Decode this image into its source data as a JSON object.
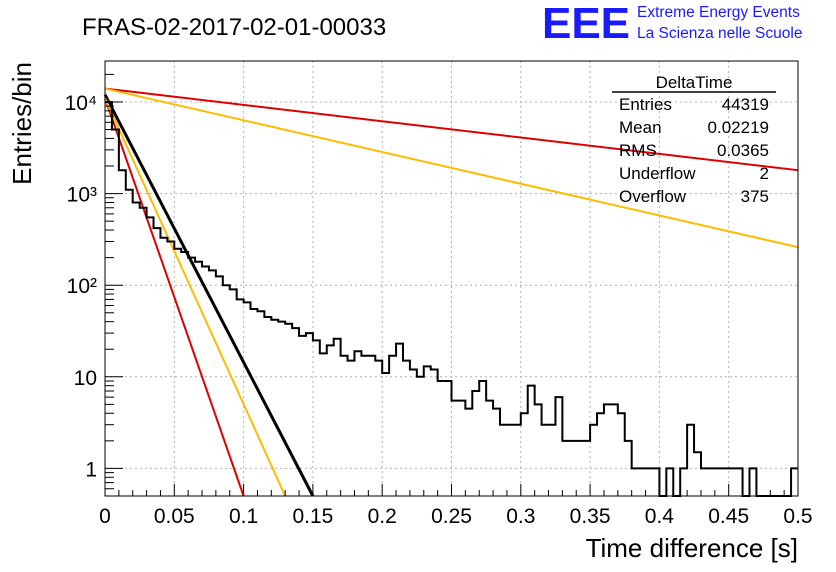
{
  "header": {
    "title": "FRAS-02-2017-02-01-00033",
    "logo_text": "EEE",
    "logo_line1": "Extreme Energy Events",
    "logo_line2": "La Scienza nelle Scuole"
  },
  "stats_box": {
    "title": "DeltaTime",
    "rows": [
      {
        "label": "Entries",
        "value": "44319"
      },
      {
        "label": "Mean",
        "value": "0.02219"
      },
      {
        "label": "RMS",
        "value": "0.0365"
      },
      {
        "label": "Underflow",
        "value": "2"
      },
      {
        "label": "Overflow",
        "value": "375"
      }
    ]
  },
  "colors": {
    "histogram": "#000000",
    "fit_dark": "#000000",
    "fit_red": "#dd0000",
    "fit_orange": "#ffbb00",
    "logo_blue": "#1a1aff"
  },
  "chart_data": {
    "type": "line",
    "title": "FRAS-02-2017-02-01-00033",
    "xlabel": "Time difference [s]",
    "ylabel": "Entries/bin",
    "xlim": [
      0,
      0.5
    ],
    "ylim": [
      0.5,
      28000
    ],
    "y_scale": "log",
    "grid": true,
    "x_ticks": [
      "0",
      "0.05",
      "0.1",
      "0.15",
      "0.2",
      "0.25",
      "0.3",
      "0.35",
      "0.4",
      "0.45",
      "0.5"
    ],
    "y_ticks": [
      {
        "value": 1,
        "label": "1"
      },
      {
        "value": 10,
        "label": "10"
      },
      {
        "value": 100,
        "label": "10²"
      },
      {
        "value": 1000,
        "label": "10³"
      },
      {
        "value": 10000,
        "label": "10⁴"
      }
    ],
    "histogram": {
      "name": "DeltaTime",
      "bin_width": 0.005,
      "values": [
        10000,
        5000,
        1800,
        1100,
        800,
        700,
        550,
        420,
        330,
        300,
        250,
        230,
        200,
        180,
        160,
        145,
        125,
        100,
        90,
        70,
        65,
        55,
        52,
        45,
        42,
        40,
        38,
        34,
        28,
        30,
        25,
        18,
        22,
        26,
        17,
        15,
        19,
        17,
        17,
        15,
        11,
        17,
        23,
        15,
        12,
        10,
        13,
        12,
        9,
        9,
        5.5,
        5.5,
        4.5,
        7,
        9,
        5.5,
        4.5,
        3,
        3,
        3,
        4,
        8,
        5,
        3,
        3,
        6,
        2,
        2,
        2,
        2,
        3,
        4,
        5,
        5,
        4,
        2,
        1,
        1,
        1,
        1,
        0.4,
        1,
        0.5,
        1,
        3,
        1.5,
        1,
        1,
        1,
        1,
        1,
        1,
        0.4,
        1,
        0.4,
        0.4,
        0.4,
        0.4,
        0.4,
        1
      ]
    },
    "fit_lines": [
      {
        "color": "#000000",
        "x": [
          0,
          0.15
        ],
        "y": [
          12000,
          0.5
        ]
      },
      {
        "color": "#dd0000",
        "x": [
          0,
          0.1
        ],
        "y": [
          11000,
          0.5
        ]
      },
      {
        "color": "#ffbb00",
        "x": [
          0,
          0.13
        ],
        "y": [
          11000,
          0.5
        ]
      },
      {
        "color": "#dd0000",
        "x": [
          0,
          0.5
        ],
        "y": [
          14000,
          1800
        ]
      },
      {
        "color": "#ffbb00",
        "x": [
          0,
          0.5
        ],
        "y": [
          14000,
          260
        ]
      }
    ]
  }
}
